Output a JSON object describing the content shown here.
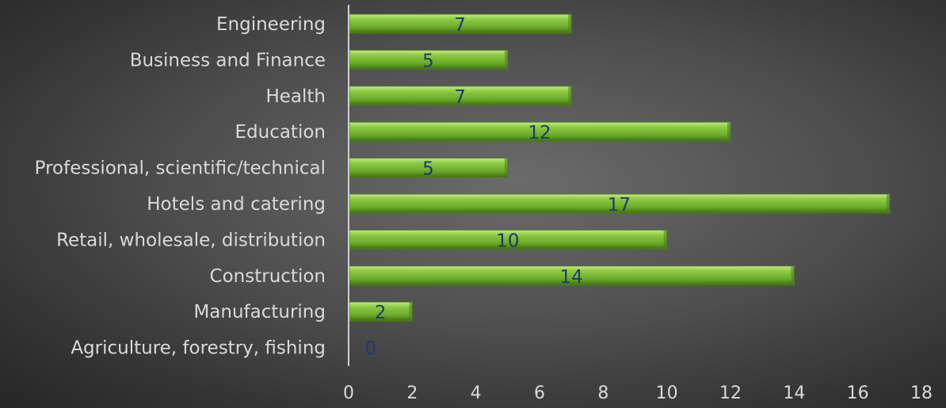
{
  "chart_data": {
    "type": "bar",
    "orientation": "horizontal",
    "categories": [
      "Engineering",
      "Business and Finance",
      "Health",
      "Education",
      "Professional, scientific/technical",
      "Hotels and catering",
      "Retail, wholesale, distribution",
      "Construction",
      "Manufacturing",
      "Agriculture, forestry, fishing"
    ],
    "values": [
      7,
      5,
      7,
      12,
      5,
      17,
      10,
      14,
      2,
      0
    ],
    "xlim": [
      0,
      18
    ],
    "xticks": [
      0,
      2,
      4,
      6,
      8,
      10,
      12,
      14,
      16,
      18
    ],
    "grid": false,
    "legend": "none",
    "data_labels": true,
    "colors": {
      "bar": "#78b832",
      "bar_light": "#a6dc5c",
      "bar_dark": "#4d7f1a",
      "label_text": "#d9d9d9",
      "data_label_text": "#1f3b6e",
      "axis": "#cfcfcf"
    }
  }
}
